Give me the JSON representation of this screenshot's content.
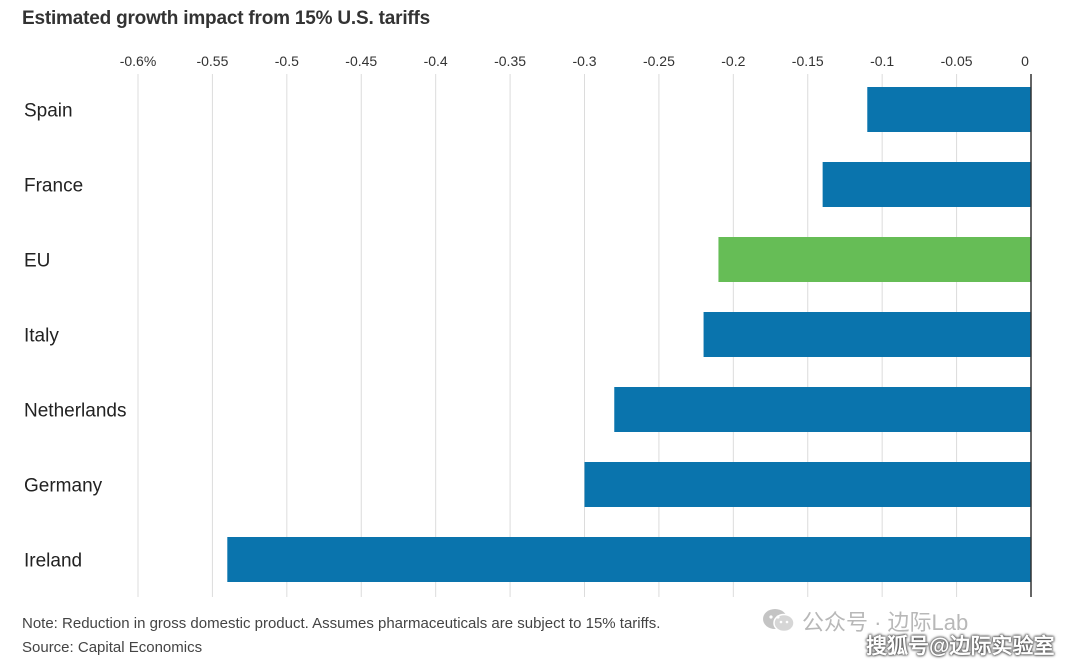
{
  "title": "Estimated growth impact from 15% U.S. tariffs",
  "chart_data": {
    "type": "bar",
    "orientation": "horizontal",
    "categories": [
      "Spain",
      "France",
      "EU",
      "Italy",
      "Netherlands",
      "Germany",
      "Ireland"
    ],
    "values": [
      -0.11,
      -0.14,
      -0.21,
      -0.22,
      -0.28,
      -0.3,
      -0.54
    ],
    "colors": [
      "#0a74ad",
      "#0a74ad",
      "#66bd56",
      "#0a74ad",
      "#0a74ad",
      "#0a74ad",
      "#0a74ad"
    ],
    "xlim": [
      -0.6,
      0
    ],
    "xticks": [
      -0.6,
      -0.55,
      -0.5,
      -0.45,
      -0.4,
      -0.35,
      -0.3,
      -0.25,
      -0.2,
      -0.15,
      -0.1,
      -0.05,
      0
    ],
    "xtick_labels": [
      "-0.6%",
      "-0.55",
      "-0.5",
      "-0.45",
      "-0.4",
      "-0.35",
      "-0.3",
      "-0.25",
      "-0.2",
      "-0.15",
      "-0.1",
      "-0.05",
      "0"
    ],
    "axis_position": "top",
    "grid": true
  },
  "footnotes": {
    "note": "Note: Reduction in gross domestic product. Assumes pharmaceuticals are subject to 15% tariffs.",
    "source": "Source: Capital Economics"
  },
  "watermarks": {
    "wechat": "公众号 · 边际Lab",
    "sohu": "搜狐号@边际实验室"
  }
}
